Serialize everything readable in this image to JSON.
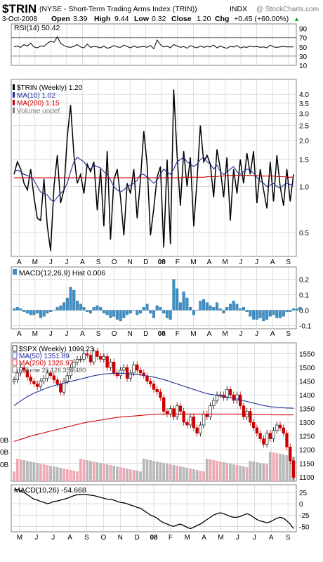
{
  "header": {
    "symbol": "$TRIN",
    "description": "(NYSE - Short-Term Trading Arms Index (TRIN))",
    "exchange": "INDX",
    "watermark": "@ StockCharts.com",
    "date": "3-Oct-2008",
    "open_label": "Open",
    "open_value": "3.39",
    "high_label": "High",
    "high_value": "9.44",
    "low_label": "Low",
    "low_value": "0.32",
    "close_label": "Close",
    "close_value": "1.20",
    "chg_label": "Chg",
    "chg_value": "+0.45 (+60.00%)",
    "up_glyph": "▲"
  },
  "colors": {
    "black": "#000000",
    "blue": "#1f2f99",
    "red": "#cc0000",
    "grid": "#c8c8c8",
    "frame": "#808080",
    "panel_bg": "#ffffff",
    "panel_bg_alt": "#f3f3f3",
    "macd_hist": "#3d8fc6",
    "volume_up": "#f0a8b4",
    "volume_down": "#b8b8b8",
    "candle_up": "#ffffff",
    "candle_down": "#cc0000"
  },
  "chart_data": [
    {
      "id": "rsi",
      "type": "line",
      "legend": "RSI(14) 50.42",
      "legend_position": "top-left",
      "ylim": [
        10,
        100
      ],
      "yticks": [
        "90",
        "70",
        "50",
        "30",
        "10"
      ],
      "reference_lines": [
        70,
        30
      ],
      "values": [
        50,
        52,
        49,
        55,
        52,
        58,
        50,
        48,
        52,
        51,
        58,
        62,
        60,
        72,
        58,
        53,
        50,
        49,
        51,
        55,
        50,
        48,
        56,
        49,
        51,
        50,
        48,
        52,
        47,
        49,
        53,
        50,
        49,
        54,
        51,
        48,
        52,
        49,
        50,
        51,
        49,
        53,
        46,
        65,
        55,
        50,
        52,
        48,
        55,
        52,
        49,
        51,
        47,
        53,
        50,
        48,
        52,
        49,
        51,
        50,
        54,
        48,
        52,
        49,
        47,
        51,
        50,
        53,
        48,
        50,
        49,
        52,
        50,
        51,
        49,
        50,
        48,
        54,
        50,
        49,
        50,
        51,
        50,
        50,
        50
      ]
    },
    {
      "id": "trin",
      "type": "line",
      "scale": "log",
      "legend": [
        {
          "label": "$TRIN (Weekly) 1.20",
          "color": "#000000"
        },
        {
          "label": "MA(10) 1.02",
          "color": "#1f2f99"
        },
        {
          "label": "MA(200) 1.15",
          "color": "#cc0000"
        },
        {
          "label": "Volume undef",
          "color": "#808080"
        }
      ],
      "legend_position": "top-left",
      "ylim": [
        0.35,
        5.0
      ],
      "yticks": [
        "4.0",
        "3.5",
        "3.0",
        "2.5",
        "2.0",
        "1.5",
        "1.0",
        "0.5"
      ],
      "series": [
        {
          "name": "$TRIN (Weekly)",
          "values": [
            1.2,
            1.45,
            1.3,
            1.05,
            0.95,
            1.3,
            0.85,
            0.62,
            0.6,
            1.12,
            0.55,
            0.38,
            1.0,
            1.6,
            0.78,
            0.95,
            2.1,
            3.4,
            1.6,
            1.05,
            1.2,
            0.9,
            1.4,
            1.25,
            1.45,
            0.7,
            1.3,
            0.55,
            1.7,
            0.45,
            1.1,
            1.3,
            0.85,
            0.48,
            1.05,
            0.9,
            1.3,
            0.62,
            1.1,
            2.3,
            1.4,
            0.48,
            0.72,
            1.15,
            1.35,
            0.4,
            1.5,
            0.42,
            4.3,
            1.6,
            0.75,
            1.7,
            1.0,
            1.55,
            0.55,
            1.1,
            2.5,
            1.45,
            1.6,
            1.4,
            0.85,
            1.75,
            1.3,
            0.85,
            1.55,
            0.6,
            1.3,
            0.9,
            1.5,
            1.05,
            1.65,
            1.2,
            1.7,
            0.78,
            1.3,
            0.95,
            0.72,
            1.45,
            0.8,
            1.6,
            1.0,
            0.75,
            1.3,
            0.8,
            1.2
          ]
        },
        {
          "name": "MA(10)",
          "values": [
            1.25,
            1.28,
            1.25,
            1.2,
            1.18,
            1.15,
            1.1,
            1.0,
            0.92,
            0.9,
            0.88,
            0.82,
            0.8,
            0.85,
            0.9,
            0.95,
            1.05,
            1.25,
            1.45,
            1.55,
            1.5,
            1.45,
            1.35,
            1.3,
            1.38,
            1.35,
            1.32,
            1.25,
            1.2,
            1.1,
            1.0,
            0.95,
            0.92,
            0.95,
            1.0,
            1.02,
            1.05,
            1.1,
            1.2,
            1.2,
            1.15,
            1.1,
            1.05,
            1.1,
            1.2,
            1.3,
            1.25,
            1.2,
            1.3,
            1.45,
            1.5,
            1.55,
            1.45,
            1.4,
            1.35,
            1.4,
            1.5,
            1.55,
            1.45,
            1.4,
            1.3,
            1.38,
            1.25,
            1.2,
            1.25,
            1.3,
            1.35,
            1.25,
            1.2,
            1.25,
            1.3,
            1.28,
            1.22,
            1.15,
            1.08,
            1.05,
            1.0,
            1.02,
            1.05,
            1.0,
            0.98,
            1.02,
            1.05,
            1.03,
            1.02
          ]
        },
        {
          "name": "MA(200)",
          "values": [
            1.14,
            1.14,
            1.14,
            1.14,
            1.14,
            1.14,
            1.14,
            1.14,
            1.14,
            1.14,
            1.14,
            1.14,
            1.14,
            1.14,
            1.14,
            1.14,
            1.14,
            1.14,
            1.14,
            1.14,
            1.14,
            1.14,
            1.14,
            1.14,
            1.14,
            1.14,
            1.14,
            1.14,
            1.14,
            1.14,
            1.14,
            1.14,
            1.14,
            1.14,
            1.14,
            1.14,
            1.14,
            1.14,
            1.14,
            1.14,
            1.14,
            1.14,
            1.14,
            1.14,
            1.14,
            1.14,
            1.14,
            1.14,
            1.14,
            1.14,
            1.14,
            1.15,
            1.15,
            1.15,
            1.15,
            1.15,
            1.15,
            1.15,
            1.16,
            1.16,
            1.16,
            1.16,
            1.17,
            1.17,
            1.18,
            1.18,
            1.18,
            1.18,
            1.18,
            1.18,
            1.18,
            1.18,
            1.18,
            1.18,
            1.17,
            1.17,
            1.17,
            1.17,
            1.17,
            1.16,
            1.16,
            1.16,
            1.15,
            1.15,
            1.15
          ]
        }
      ]
    },
    {
      "id": "macd_hist",
      "type": "bar",
      "legend": "MACD(12,26,9) Hist 0.006",
      "legend_position": "top-left",
      "ylim": [
        -0.12,
        0.28
      ],
      "yticks": [
        "0.2",
        "0.1",
        "0.0",
        "-0.1"
      ],
      "values": [
        0.01,
        0.02,
        0.01,
        -0.01,
        -0.02,
        -0.03,
        -0.03,
        -0.02,
        -0.05,
        -0.04,
        -0.02,
        -0.01,
        0.0,
        0.02,
        0.03,
        0.05,
        0.08,
        0.15,
        0.13,
        0.06,
        0.04,
        0.02,
        -0.01,
        -0.02,
        0.02,
        0.03,
        0.02,
        -0.02,
        -0.03,
        -0.05,
        -0.04,
        -0.06,
        -0.07,
        -0.05,
        -0.03,
        -0.02,
        0.0,
        -0.03,
        -0.02,
        0.02,
        0.04,
        -0.02,
        -0.05,
        0.03,
        0.02,
        -0.02,
        -0.05,
        -0.06,
        0.2,
        0.14,
        0.05,
        0.12,
        0.08,
        0.02,
        -0.03,
        0.0,
        0.06,
        0.07,
        0.05,
        0.03,
        0.02,
        0.05,
        0.01,
        -0.02,
        0.02,
        0.04,
        0.06,
        0.04,
        0.01,
        0.02,
        -0.01,
        -0.04,
        -0.06,
        -0.06,
        -0.05,
        -0.07,
        -0.06,
        -0.04,
        -0.03,
        -0.05,
        -0.05,
        -0.04,
        -0.01,
        -0.01,
        0.01,
        0.01,
        0.02
      ]
    },
    {
      "id": "spx",
      "type": "candlestick",
      "legend": [
        {
          "label": "$SPX (Weekly) 1099.23",
          "color": "#000000"
        },
        {
          "label": "MA(50) 1351.89",
          "color": "#1f2f99"
        },
        {
          "label": "MA(200) 1326.97",
          "color": "#cc0000"
        },
        {
          "label": "Volume 26,126,356,480",
          "color": "#555555"
        }
      ],
      "legend_position": "top-left",
      "ylim": [
        1085,
        1590
      ],
      "yticks": [
        "1550",
        "1500",
        "1450",
        "1400",
        "1350",
        "1300",
        "1250",
        "1200",
        "1150",
        "1100"
      ],
      "volume_ticks": [
        "0B",
        "0B",
        "0B"
      ],
      "series": [
        {
          "name": "$SPX (Weekly)",
          "values": [
            1455,
            1480,
            1500,
            1490,
            1465,
            1450,
            1440,
            1430,
            1450,
            1460,
            1480,
            1470,
            1455,
            1440,
            1410,
            1450,
            1470,
            1500,
            1520,
            1530,
            1530,
            1550,
            1545,
            1520,
            1560,
            1540,
            1530,
            1540,
            1500,
            1520,
            1480,
            1470,
            1490,
            1500,
            1460,
            1480,
            1510,
            1490,
            1480,
            1470,
            1450,
            1440,
            1420,
            1411,
            1390,
            1340,
            1330,
            1350,
            1320,
            1360,
            1340,
            1300,
            1290,
            1320,
            1280,
            1260,
            1290,
            1330,
            1320,
            1360,
            1380,
            1400,
            1400,
            1390,
            1420,
            1400,
            1380,
            1400,
            1360,
            1320,
            1340,
            1300,
            1280,
            1260,
            1240,
            1220,
            1260,
            1240,
            1270,
            1290,
            1280,
            1260,
            1210,
            1160,
            1099
          ]
        },
        {
          "name": "MA(50)",
          "values": [
            1360,
            1370,
            1378,
            1386,
            1394,
            1400,
            1406,
            1411,
            1416,
            1421,
            1426,
            1430,
            1434,
            1437,
            1440,
            1443,
            1446,
            1449,
            1452,
            1455,
            1458,
            1461,
            1464,
            1467,
            1470,
            1472,
            1474,
            1476,
            1477,
            1478,
            1479,
            1479,
            1479,
            1478,
            1477,
            1476,
            1475,
            1474,
            1473,
            1471,
            1469,
            1467,
            1465,
            1462,
            1459,
            1456,
            1452,
            1448,
            1444,
            1440,
            1436,
            1432,
            1428,
            1424,
            1420,
            1416,
            1412,
            1408,
            1405,
            1402,
            1400,
            1398,
            1396,
            1394,
            1392,
            1390,
            1388,
            1385,
            1382,
            1379,
            1376,
            1373,
            1370,
            1367,
            1364,
            1361,
            1359,
            1357,
            1356,
            1355,
            1354,
            1353,
            1352,
            1352,
            1351
          ]
        },
        {
          "name": "MA(200)",
          "values": [
            1230,
            1234,
            1238,
            1242,
            1246,
            1250,
            1253,
            1256,
            1259,
            1262,
            1265,
            1268,
            1271,
            1274,
            1277,
            1280,
            1283,
            1286,
            1289,
            1292,
            1295,
            1298,
            1300,
            1302,
            1304,
            1306,
            1308,
            1310,
            1312,
            1314,
            1316,
            1318,
            1319,
            1320,
            1321,
            1322,
            1323,
            1324,
            1325,
            1326,
            1327,
            1328,
            1329,
            1330,
            1330,
            1330,
            1330,
            1330,
            1330,
            1330,
            1330,
            1330,
            1330,
            1330,
            1330,
            1330,
            1330,
            1330,
            1330,
            1330,
            1330,
            1330,
            1330,
            1330,
            1330,
            1330,
            1330,
            1330,
            1330,
            1330,
            1330,
            1329,
            1329,
            1329,
            1328,
            1328,
            1328,
            1328,
            1327,
            1327,
            1327,
            1327,
            1327,
            1327,
            1327
          ]
        }
      ]
    },
    {
      "id": "spx_macd",
      "type": "line",
      "legend": "MACD(10,26) -54.668",
      "legend_position": "top-left",
      "ylim": [
        -62,
        42
      ],
      "yticks": [
        "25",
        "0",
        "-25",
        "-50"
      ],
      "values": [
        30,
        32,
        28,
        25,
        20,
        15,
        10,
        8,
        5,
        3,
        0,
        2,
        5,
        6,
        8,
        10,
        12,
        15,
        18,
        20,
        20,
        21,
        20,
        19,
        18,
        16,
        14,
        12,
        10,
        10,
        8,
        5,
        3,
        2,
        0,
        -3,
        -5,
        -8,
        -10,
        -15,
        -20,
        -25,
        -28,
        -32,
        -38,
        -42,
        -45,
        -48,
        -50,
        -47,
        -45,
        -48,
        -52,
        -55,
        -52,
        -48,
        -45,
        -40,
        -35,
        -30,
        -25,
        -22,
        -20,
        -22,
        -25,
        -28,
        -30,
        -30,
        -28,
        -25,
        -22,
        -25,
        -30,
        -35,
        -38,
        -40,
        -42,
        -40,
        -36,
        -32,
        -30,
        -32,
        -38,
        -45,
        -55
      ]
    }
  ],
  "x_axis": {
    "top_labels": [
      "A",
      "M",
      "J",
      "J",
      "A",
      "S",
      "O",
      "N",
      "D",
      "08",
      "F",
      "M",
      "A",
      "M",
      "J",
      "J",
      "A",
      "S"
    ],
    "bottom_labels": [
      "M",
      "J",
      "J",
      "A",
      "S",
      "O",
      "N",
      "D",
      "08",
      "F",
      "M",
      "A",
      "M",
      "J",
      "J",
      "A",
      "S"
    ]
  }
}
